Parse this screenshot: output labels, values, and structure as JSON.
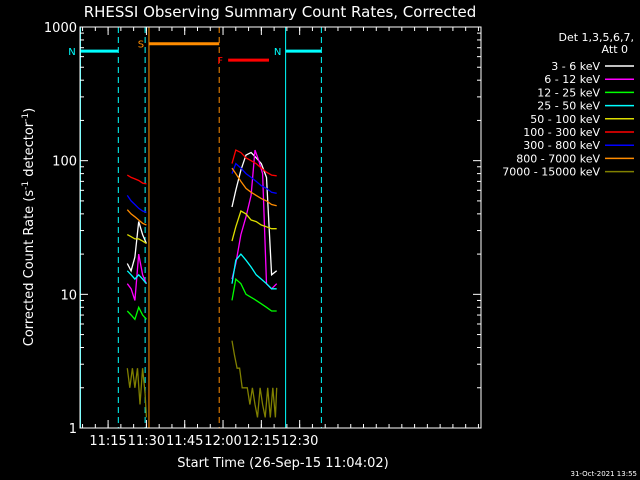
{
  "chart_data": {
    "type": "line",
    "title": "RHESSI Observing Summary Count Rates, Corrected",
    "xlabel": "Start Time (26-Sep-15 11:04:02)",
    "ylabel_main": "Corrected Count Rate (s",
    "ylabel_sup1": "-1",
    "ylabel_mid": " detector",
    "ylabel_sup2": "-1",
    "ylabel_end": ")",
    "yscale": "log",
    "xlim": [
      1064.0,
      1221.0
    ],
    "ylim": [
      1,
      1000
    ],
    "x_ticks": [
      {
        "value": 1075,
        "label": "11:15"
      },
      {
        "value": 1090,
        "label": "11:30"
      },
      {
        "value": 1105,
        "label": "11:45"
      },
      {
        "value": 1120,
        "label": "12:00"
      },
      {
        "value": 1135,
        "label": "12:15"
      },
      {
        "value": 1150,
        "label": "12:30"
      }
    ],
    "y_ticks": [
      {
        "value": 1,
        "label": "1"
      },
      {
        "value": 10,
        "label": "10"
      },
      {
        "value": 100,
        "label": "100"
      },
      {
        "value": 1000,
        "label": "1000"
      }
    ],
    "legend_title1": "Det 1,3,5,6,7,",
    "legend_title2": "Att 0",
    "legend_position": "right",
    "timestamp": "31-Oct-2021 13:55",
    "series": [
      {
        "name": "3 - 6 keV",
        "color": "#ffffff",
        "segments": [
          {
            "x": [
              1082.5,
              1084,
              1085.5,
              1087,
              1088.5,
              1090
            ],
            "y": [
              17,
              15,
              19,
              35,
              28,
              24
            ]
          },
          {
            "x": [
              1123.5,
              1125,
              1127,
              1129,
              1131,
              1133,
              1135,
              1137,
              1139,
              1141
            ],
            "y": [
              45,
              60,
              85,
              110,
              115,
              105,
              95,
              75,
              14,
              15
            ]
          }
        ]
      },
      {
        "name": "6 - 12 keV",
        "color": "#ff00ff",
        "segments": [
          {
            "x": [
              1082.5,
              1084,
              1085.5,
              1087,
              1088.5,
              1090
            ],
            "y": [
              12,
              11,
              9,
              20,
              14,
              12
            ]
          },
          {
            "x": [
              1123.5,
              1125,
              1127,
              1129,
              1131,
              1132.5,
              1134,
              1135.5,
              1137,
              1139,
              1141
            ],
            "y": [
              13,
              17,
              28,
              38,
              55,
              120,
              100,
              80,
              12,
              11,
              12
            ]
          }
        ]
      },
      {
        "name": "12 - 25 keV",
        "color": "#00ff00",
        "segments": [
          {
            "x": [
              1082.5,
              1084,
              1085.5,
              1087,
              1088.5,
              1090
            ],
            "y": [
              7.5,
              7,
              6.5,
              8,
              7,
              6.5
            ]
          },
          {
            "x": [
              1123.5,
              1125,
              1127,
              1129,
              1131,
              1133,
              1135,
              1137,
              1139,
              1141
            ],
            "y": [
              9,
              13,
              12,
              10,
              9.5,
              9,
              8.5,
              8,
              7.5,
              7.5
            ]
          }
        ]
      },
      {
        "name": "25 - 50 keV",
        "color": "#00ffff",
        "segments": [
          {
            "x": [
              1082.5,
              1084,
              1085.5,
              1087,
              1088.5,
              1090
            ],
            "y": [
              15,
              14,
              13,
              14,
              13,
              12
            ]
          },
          {
            "x": [
              1123.5,
              1125,
              1127,
              1129,
              1131,
              1133,
              1135,
              1137,
              1139,
              1141
            ],
            "y": [
              12,
              18,
              20,
              18,
              16,
              14,
              13,
              12,
              11,
              11
            ]
          }
        ]
      },
      {
        "name": "50 - 100 keV",
        "color": "#dddd00",
        "segments": [
          {
            "x": [
              1082.5,
              1084,
              1085.5,
              1087,
              1088.5,
              1090
            ],
            "y": [
              28,
              27,
              26,
              26,
              25,
              24
            ]
          },
          {
            "x": [
              1123.5,
              1125,
              1127,
              1129,
              1131,
              1133,
              1135,
              1137,
              1139,
              1141
            ],
            "y": [
              25,
              32,
              42,
              40,
              36,
              35,
              33,
              32,
              31,
              31
            ]
          }
        ]
      },
      {
        "name": "100 - 300 keV",
        "color": "#ff0000",
        "segments": [
          {
            "x": [
              1082.5,
              1084,
              1085.5,
              1087,
              1088.5,
              1090
            ],
            "y": [
              78,
              75,
              73,
              71,
              68,
              67
            ]
          },
          {
            "x": [
              1123.5,
              1125,
              1127,
              1129,
              1131,
              1133,
              1135,
              1137,
              1139,
              1141
            ],
            "y": [
              95,
              120,
              115,
              105,
              100,
              95,
              88,
              82,
              78,
              77
            ]
          }
        ]
      },
      {
        "name": "300 - 800 keV",
        "color": "#0000ff",
        "segments": [
          {
            "x": [
              1082.5,
              1084,
              1085.5,
              1087,
              1088.5,
              1090
            ],
            "y": [
              55,
              50,
              47,
              44,
              42,
              41
            ]
          },
          {
            "x": [
              1123.5,
              1125,
              1127,
              1129,
              1131,
              1133,
              1135,
              1137,
              1139,
              1141
            ],
            "y": [
              80,
              95,
              88,
              80,
              75,
              70,
              65,
              62,
              58,
              57
            ]
          }
        ]
      },
      {
        "name": "800 - 7000 keV",
        "color": "#ff8c00",
        "segments": [
          {
            "x": [
              1082.5,
              1084,
              1085.5,
              1087,
              1088.5,
              1090
            ],
            "y": [
              43,
              40,
              38,
              36,
              34,
              33
            ]
          },
          {
            "x": [
              1123.5,
              1125,
              1127,
              1129,
              1131,
              1133,
              1135,
              1137,
              1139,
              1141
            ],
            "y": [
              88,
              80,
              70,
              62,
              58,
              55,
              52,
              50,
              47,
              46
            ]
          }
        ]
      },
      {
        "name": "7000 - 15000 keV",
        "color": "#808000",
        "segments": [
          {
            "x": [
              1082.5,
              1083.5,
              1084.5,
              1085.5,
              1086.5,
              1087.5,
              1088.5,
              1089.5,
              1090
            ],
            "y": [
              2.8,
              2.0,
              2.8,
              2.0,
              2.8,
              1.5,
              2.8,
              1.8,
              1.2
            ]
          },
          {
            "x": [
              1123.5,
              1124.5,
              1125.5,
              1126.5,
              1127.5,
              1128.5,
              1129.5,
              1130.5,
              1131.5,
              1132.5,
              1133.5,
              1134.5,
              1135.5,
              1136.5,
              1137.5,
              1138.5,
              1139.5,
              1140.5,
              1141
            ],
            "y": [
              4.5,
              3.5,
              2.8,
              2.8,
              2.0,
              2.0,
              2.0,
              1.5,
              2.0,
              1.5,
              1.2,
              2.0,
              1.5,
              1.2,
              2.0,
              1.2,
              2.0,
              1.2,
              2.0
            ]
          }
        ]
      }
    ],
    "flag_bars": [
      {
        "label": "N",
        "color": "#00ffff",
        "x0": 1064.0,
        "x1": 1079.0,
        "y": 660
      },
      {
        "label": "N",
        "color": "#00ffff",
        "x0": 1144.5,
        "x1": 1158.5,
        "y": 660
      },
      {
        "label": "S",
        "color": "#ff8c00",
        "x0": 1091.0,
        "x1": 1118.5,
        "y": 750
      },
      {
        "label": "F",
        "color": "#ff0000",
        "x0": 1122.0,
        "x1": 1138.0,
        "y": 565
      }
    ],
    "vertical_lines": [
      {
        "x": 1064.2,
        "color": "#00ffff",
        "style": "solid"
      },
      {
        "x": 1089.5,
        "color": "#00ffff",
        "style": "dashed"
      },
      {
        "x": 1144.5,
        "color": "#00ffff",
        "style": "solid"
      },
      {
        "x": 1158.5,
        "color": "#00ffff",
        "style": "dashed"
      },
      {
        "x": 1091.0,
        "color": "#ff8c00",
        "style": "solid"
      },
      {
        "x": 1118.5,
        "color": "#ff8c00",
        "style": "dashed"
      },
      {
        "x": 1079.0,
        "color": "#00ffff",
        "style": "dashed"
      }
    ]
  }
}
